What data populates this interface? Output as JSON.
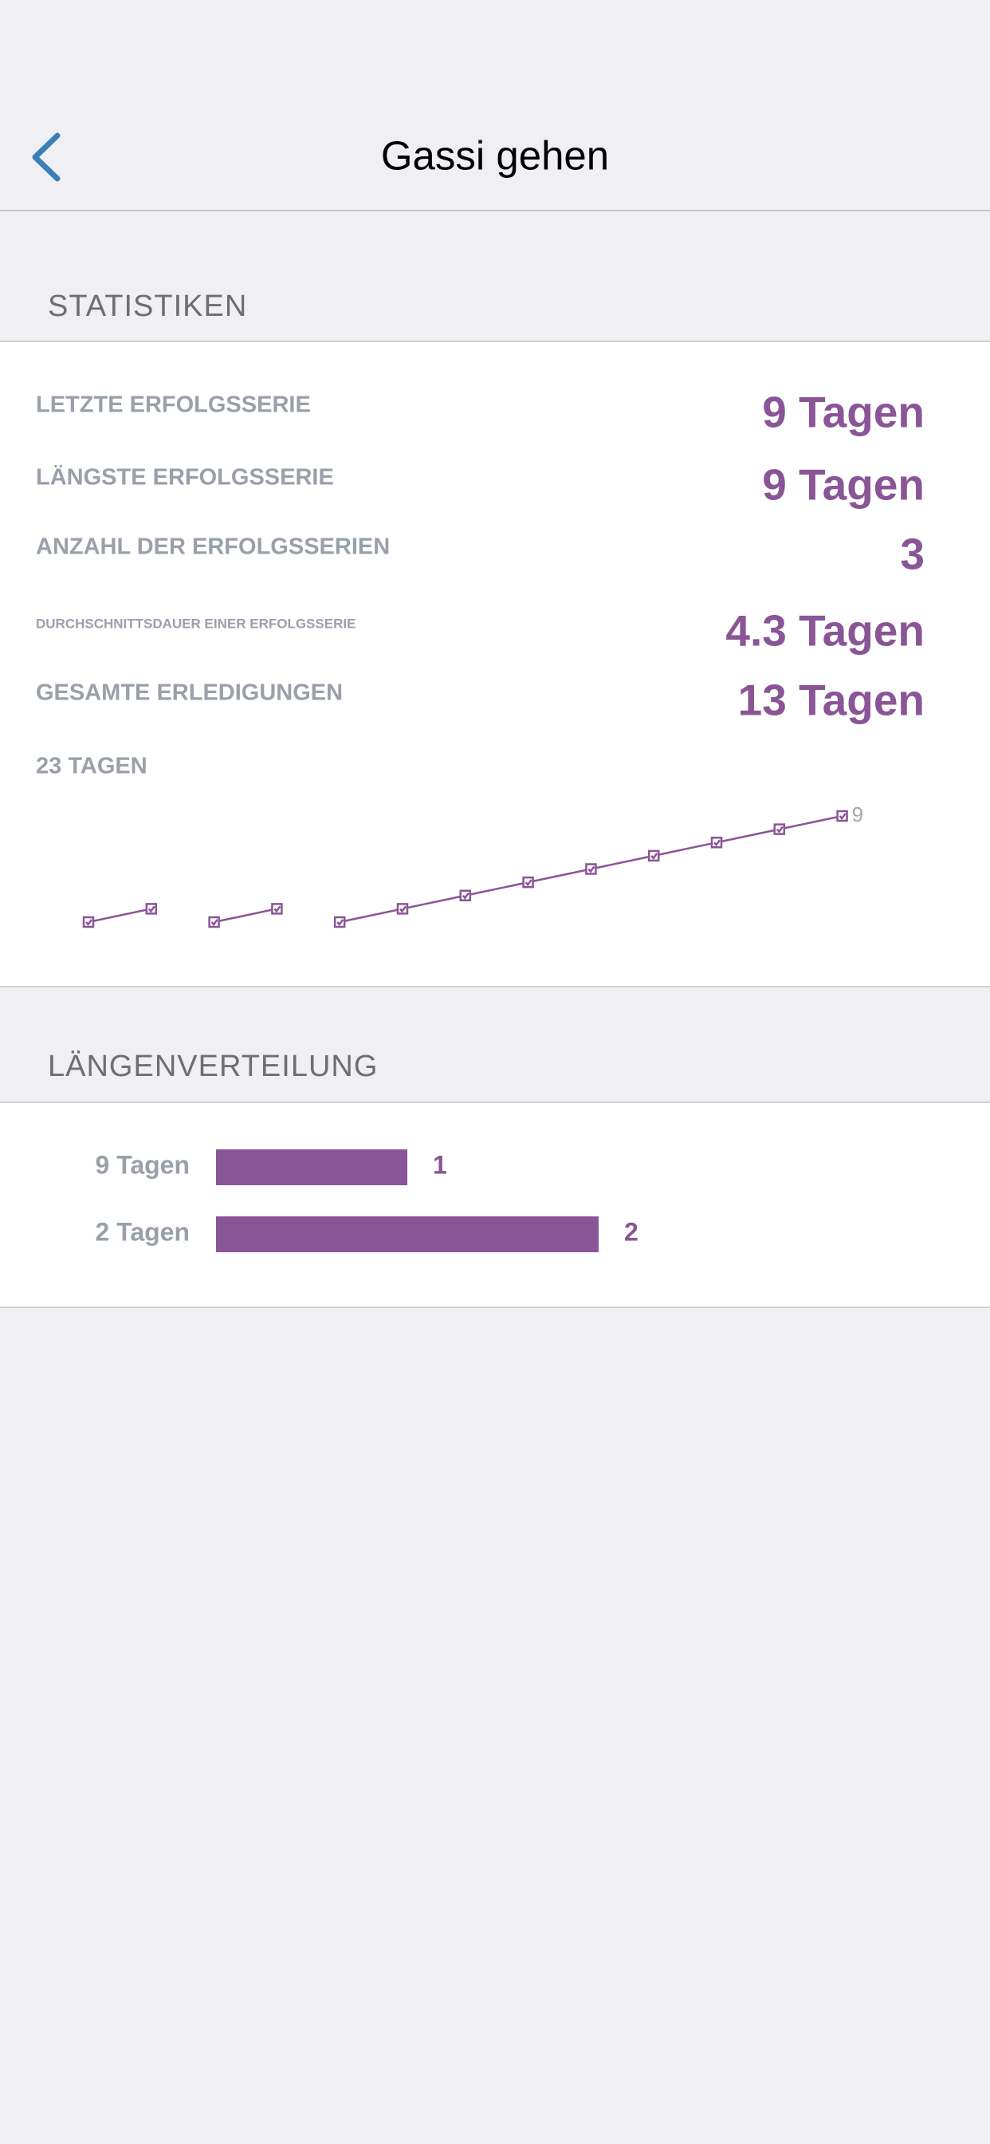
{
  "nav": {
    "title": "Gassi gehen"
  },
  "sections": [
    "STATISTIKEN",
    "LÄNGENVERTEILUNG"
  ],
  "stats": [
    {
      "label": "LETZTE ERFOLGSSERIE",
      "value": "9 Tagen"
    },
    {
      "label": "LÄNGSTE ERFOLGSSERIE",
      "value": "9 Tagen"
    },
    {
      "label": "ANZAHL DER ERFOLGSSERIEN",
      "value": "3"
    },
    {
      "label": "DURCHSCHNITTSDAUER EINER ERFOLGSSERIE",
      "value": "4.3 Tagen"
    },
    {
      "label": "GESAMTE ERLEDIGUNGEN",
      "value": "13 Tagen"
    }
  ],
  "chart_data": [
    {
      "type": "line",
      "title": "23 TAGEN",
      "color": "#8a5596",
      "series": [
        {
          "values": [
            1,
            2
          ]
        },
        {
          "values": [
            1,
            2
          ]
        },
        {
          "values": [
            1,
            2,
            3,
            4,
            5,
            6,
            7,
            8,
            9
          ]
        }
      ]
    },
    {
      "type": "bar",
      "orientation": "horizontal",
      "color": "#8a5596",
      "categories": [
        "9 Tagen",
        "2 Tagen"
      ],
      "values": [
        1,
        2
      ]
    }
  ]
}
